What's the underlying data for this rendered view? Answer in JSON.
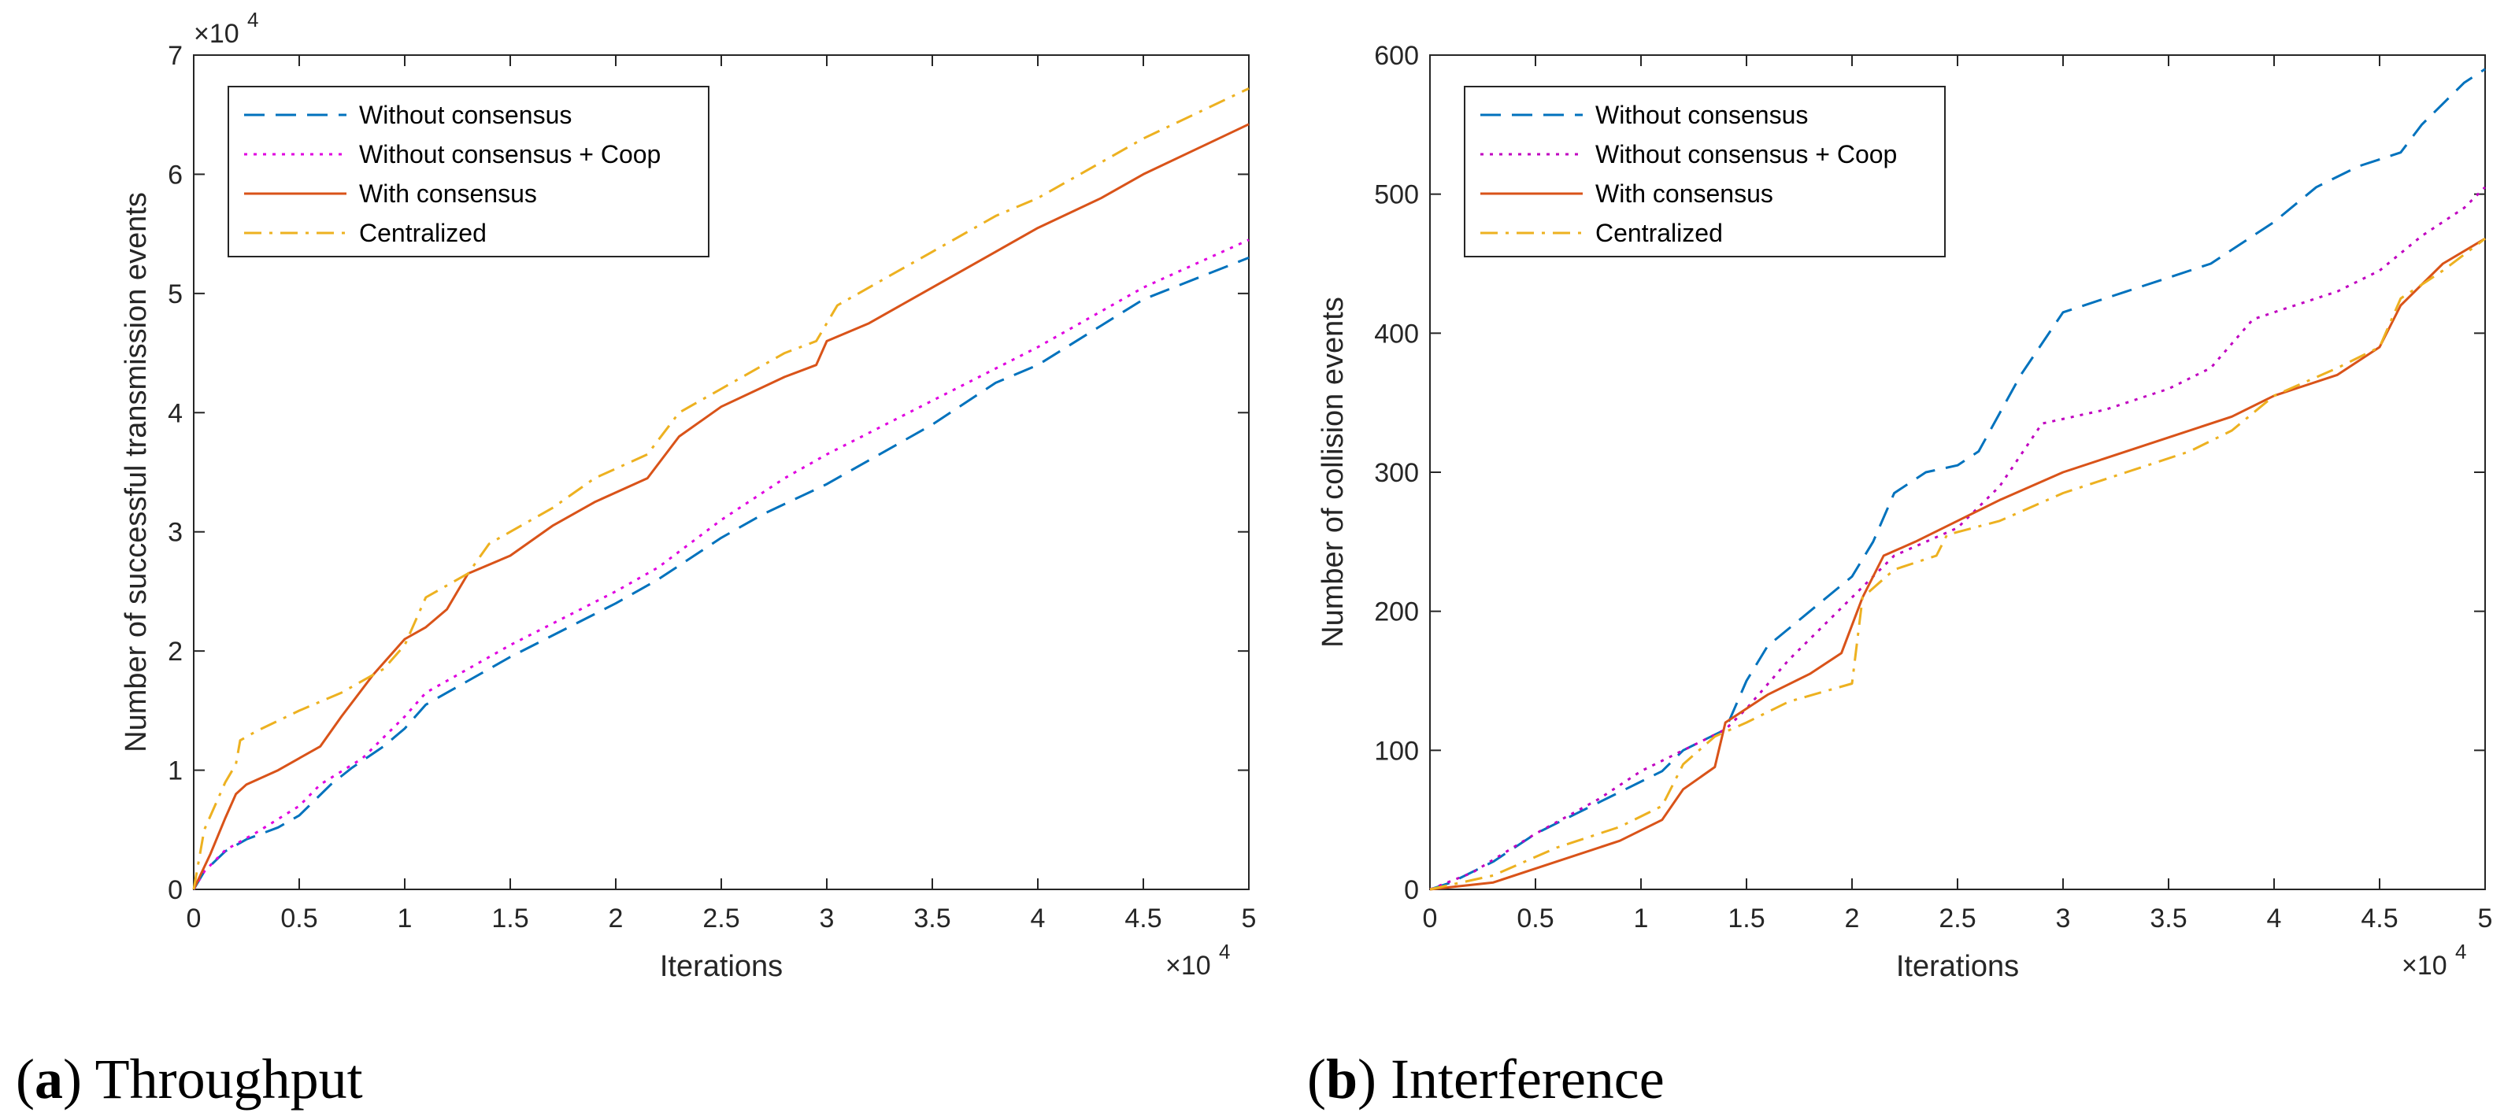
{
  "chart_data": [
    {
      "type": "line",
      "caption_letter": "a",
      "caption_text": "Throughput",
      "xlabel": "Iterations",
      "ylabel": "Number of successful transmission events",
      "x_exponent": "10",
      "x_exponent_power": "4",
      "y_exponent": "10",
      "y_exponent_power": "4",
      "xlim": [
        0,
        5
      ],
      "ylim": [
        0,
        7
      ],
      "x_ticks": [
        "0",
        "0.5",
        "1",
        "1.5",
        "2",
        "2.5",
        "3",
        "3.5",
        "4",
        "4.5",
        "5"
      ],
      "y_ticks": [
        "0",
        "1",
        "2",
        "3",
        "4",
        "5",
        "6",
        "7"
      ],
      "legend_position": "top-left",
      "series": [
        {
          "name": "Without consensus",
          "color": "#0072BD",
          "dash": "dashed",
          "points": [
            [
              0,
              0
            ],
            [
              0.05,
              0.15
            ],
            [
              0.15,
              0.32
            ],
            [
              0.25,
              0.42
            ],
            [
              0.4,
              0.52
            ],
            [
              0.5,
              0.62
            ],
            [
              0.65,
              0.88
            ],
            [
              0.75,
              1.02
            ],
            [
              0.9,
              1.2
            ],
            [
              1.0,
              1.35
            ],
            [
              1.1,
              1.55
            ],
            [
              1.2,
              1.65
            ],
            [
              1.3,
              1.75
            ],
            [
              1.4,
              1.85
            ],
            [
              1.5,
              1.95
            ],
            [
              2.0,
              2.4
            ],
            [
              2.2,
              2.6
            ],
            [
              2.5,
              2.95
            ],
            [
              2.7,
              3.15
            ],
            [
              3.0,
              3.4
            ],
            [
              3.5,
              3.9
            ],
            [
              3.8,
              4.25
            ],
            [
              4.0,
              4.4
            ],
            [
              4.5,
              4.95
            ],
            [
              5.0,
              5.3
            ]
          ]
        },
        {
          "name": "Without consensus + Coop",
          "color": "#E000E0",
          "dash": "dotted",
          "points": [
            [
              0,
              0
            ],
            [
              0.05,
              0.15
            ],
            [
              0.15,
              0.33
            ],
            [
              0.3,
              0.48
            ],
            [
              0.5,
              0.7
            ],
            [
              0.6,
              0.88
            ],
            [
              0.8,
              1.1
            ],
            [
              1.0,
              1.45
            ],
            [
              1.1,
              1.65
            ],
            [
              1.3,
              1.85
            ],
            [
              1.5,
              2.05
            ],
            [
              2.0,
              2.5
            ],
            [
              2.2,
              2.7
            ],
            [
              2.5,
              3.1
            ],
            [
              2.8,
              3.45
            ],
            [
              3.0,
              3.65
            ],
            [
              3.5,
              4.1
            ],
            [
              4.0,
              4.55
            ],
            [
              4.5,
              5.05
            ],
            [
              5.0,
              5.45
            ]
          ]
        },
        {
          "name": "With consensus",
          "color": "#D95319",
          "dash": "solid",
          "points": [
            [
              0,
              0
            ],
            [
              0.08,
              0.3
            ],
            [
              0.15,
              0.6
            ],
            [
              0.2,
              0.8
            ],
            [
              0.25,
              0.88
            ],
            [
              0.4,
              1.0
            ],
            [
              0.5,
              1.1
            ],
            [
              0.6,
              1.2
            ],
            [
              0.7,
              1.45
            ],
            [
              0.85,
              1.8
            ],
            [
              0.95,
              2.0
            ],
            [
              1.0,
              2.1
            ],
            [
              1.1,
              2.2
            ],
            [
              1.2,
              2.35
            ],
            [
              1.25,
              2.5
            ],
            [
              1.3,
              2.65
            ],
            [
              1.5,
              2.8
            ],
            [
              1.7,
              3.05
            ],
            [
              1.9,
              3.25
            ],
            [
              2.15,
              3.45
            ],
            [
              2.3,
              3.8
            ],
            [
              2.5,
              4.05
            ],
            [
              2.8,
              4.3
            ],
            [
              2.95,
              4.4
            ],
            [
              3.0,
              4.6
            ],
            [
              3.2,
              4.75
            ],
            [
              3.5,
              5.05
            ],
            [
              3.8,
              5.35
            ],
            [
              4.0,
              5.55
            ],
            [
              4.3,
              5.8
            ],
            [
              4.5,
              6.0
            ],
            [
              5.0,
              6.42
            ]
          ]
        },
        {
          "name": "Centralized",
          "color": "#EDB120",
          "dash": "dashdot",
          "points": [
            [
              0,
              0
            ],
            [
              0.05,
              0.5
            ],
            [
              0.15,
              0.9
            ],
            [
              0.2,
              1.05
            ],
            [
              0.22,
              1.25
            ],
            [
              0.3,
              1.33
            ],
            [
              0.5,
              1.5
            ],
            [
              0.7,
              1.65
            ],
            [
              0.9,
              1.85
            ],
            [
              1.0,
              2.05
            ],
            [
              1.1,
              2.45
            ],
            [
              1.3,
              2.65
            ],
            [
              1.4,
              2.9
            ],
            [
              1.5,
              3.0
            ],
            [
              1.7,
              3.2
            ],
            [
              1.9,
              3.45
            ],
            [
              2.15,
              3.65
            ],
            [
              2.3,
              4.0
            ],
            [
              2.35,
              4.05
            ],
            [
              2.5,
              4.2
            ],
            [
              2.8,
              4.5
            ],
            [
              2.95,
              4.6
            ],
            [
              3.05,
              4.9
            ],
            [
              3.3,
              5.15
            ],
            [
              3.5,
              5.35
            ],
            [
              3.8,
              5.65
            ],
            [
              4.0,
              5.8
            ],
            [
              4.5,
              6.3
            ],
            [
              5.0,
              6.72
            ]
          ]
        }
      ]
    },
    {
      "type": "line",
      "caption_letter": "b",
      "caption_text": "Interference",
      "xlabel": "Iterations",
      "ylabel": "Number of collision events",
      "x_exponent": "10",
      "x_exponent_power": "4",
      "xlim": [
        0,
        5
      ],
      "ylim": [
        0,
        600
      ],
      "x_ticks": [
        "0",
        "0.5",
        "1",
        "1.5",
        "2",
        "2.5",
        "3",
        "3.5",
        "4",
        "4.5",
        "5"
      ],
      "y_ticks": [
        "0",
        "100",
        "200",
        "300",
        "400",
        "500",
        "600"
      ],
      "legend_position": "top-left",
      "series": [
        {
          "name": "Without consensus",
          "color": "#0072BD",
          "dash": "dashed",
          "points": [
            [
              0,
              0
            ],
            [
              0.1,
              5
            ],
            [
              0.3,
              20
            ],
            [
              0.5,
              40
            ],
            [
              0.7,
              55
            ],
            [
              0.9,
              70
            ],
            [
              1.1,
              85
            ],
            [
              1.2,
              100
            ],
            [
              1.4,
              115
            ],
            [
              1.5,
              150
            ],
            [
              1.6,
              175
            ],
            [
              1.8,
              200
            ],
            [
              2.0,
              225
            ],
            [
              2.1,
              250
            ],
            [
              2.2,
              285
            ],
            [
              2.35,
              300
            ],
            [
              2.5,
              305
            ],
            [
              2.6,
              315
            ],
            [
              2.8,
              370
            ],
            [
              3.0,
              415
            ],
            [
              3.3,
              430
            ],
            [
              3.5,
              440
            ],
            [
              3.7,
              450
            ],
            [
              4.0,
              480
            ],
            [
              4.2,
              505
            ],
            [
              4.4,
              520
            ],
            [
              4.6,
              530
            ],
            [
              4.7,
              550
            ],
            [
              4.9,
              580
            ],
            [
              5.0,
              590
            ]
          ]
        },
        {
          "name": "Without consensus + Coop",
          "color": "#C000C0",
          "dash": "dotted",
          "points": [
            [
              0,
              0
            ],
            [
              0.2,
              12
            ],
            [
              0.5,
              40
            ],
            [
              0.8,
              65
            ],
            [
              1.0,
              85
            ],
            [
              1.2,
              100
            ],
            [
              1.4,
              115
            ],
            [
              1.5,
              130
            ],
            [
              1.7,
              165
            ],
            [
              1.9,
              195
            ],
            [
              2.0,
              210
            ],
            [
              2.1,
              225
            ],
            [
              2.2,
              240
            ],
            [
              2.5,
              260
            ],
            [
              2.7,
              290
            ],
            [
              2.9,
              335
            ],
            [
              3.2,
              345
            ],
            [
              3.5,
              360
            ],
            [
              3.7,
              375
            ],
            [
              3.9,
              410
            ],
            [
              4.0,
              415
            ],
            [
              4.3,
              430
            ],
            [
              4.5,
              445
            ],
            [
              4.7,
              470
            ],
            [
              4.9,
              490
            ],
            [
              5.0,
              505
            ]
          ]
        },
        {
          "name": "With consensus",
          "color": "#D95319",
          "dash": "solid",
          "points": [
            [
              0,
              0
            ],
            [
              0.3,
              5
            ],
            [
              0.6,
              20
            ],
            [
              0.9,
              35
            ],
            [
              1.1,
              50
            ],
            [
              1.2,
              72
            ],
            [
              1.35,
              88
            ],
            [
              1.4,
              120
            ],
            [
              1.6,
              140
            ],
            [
              1.8,
              155
            ],
            [
              1.95,
              170
            ],
            [
              2.05,
              210
            ],
            [
              2.15,
              240
            ],
            [
              2.3,
              250
            ],
            [
              2.5,
              265
            ],
            [
              2.7,
              280
            ],
            [
              3.0,
              300
            ],
            [
              3.2,
              310
            ],
            [
              3.5,
              325
            ],
            [
              3.8,
              340
            ],
            [
              4.0,
              355
            ],
            [
              4.3,
              370
            ],
            [
              4.5,
              390
            ],
            [
              4.6,
              420
            ],
            [
              4.8,
              450
            ],
            [
              5.0,
              468
            ]
          ]
        },
        {
          "name": "Centralized",
          "color": "#EDB120",
          "dash": "dashdot",
          "points": [
            [
              0,
              0
            ],
            [
              0.3,
              10
            ],
            [
              0.6,
              30
            ],
            [
              0.9,
              45
            ],
            [
              1.1,
              60
            ],
            [
              1.2,
              90
            ],
            [
              1.35,
              110
            ],
            [
              1.5,
              120
            ],
            [
              1.7,
              135
            ],
            [
              2.0,
              148
            ],
            [
              2.05,
              210
            ],
            [
              2.2,
              230
            ],
            [
              2.4,
              240
            ],
            [
              2.45,
              255
            ],
            [
              2.7,
              265
            ],
            [
              3.0,
              285
            ],
            [
              3.3,
              300
            ],
            [
              3.6,
              315
            ],
            [
              3.8,
              330
            ],
            [
              4.0,
              355
            ],
            [
              4.3,
              375
            ],
            [
              4.5,
              390
            ],
            [
              4.6,
              425
            ],
            [
              4.8,
              445
            ],
            [
              5.0,
              468
            ]
          ]
        }
      ]
    }
  ]
}
